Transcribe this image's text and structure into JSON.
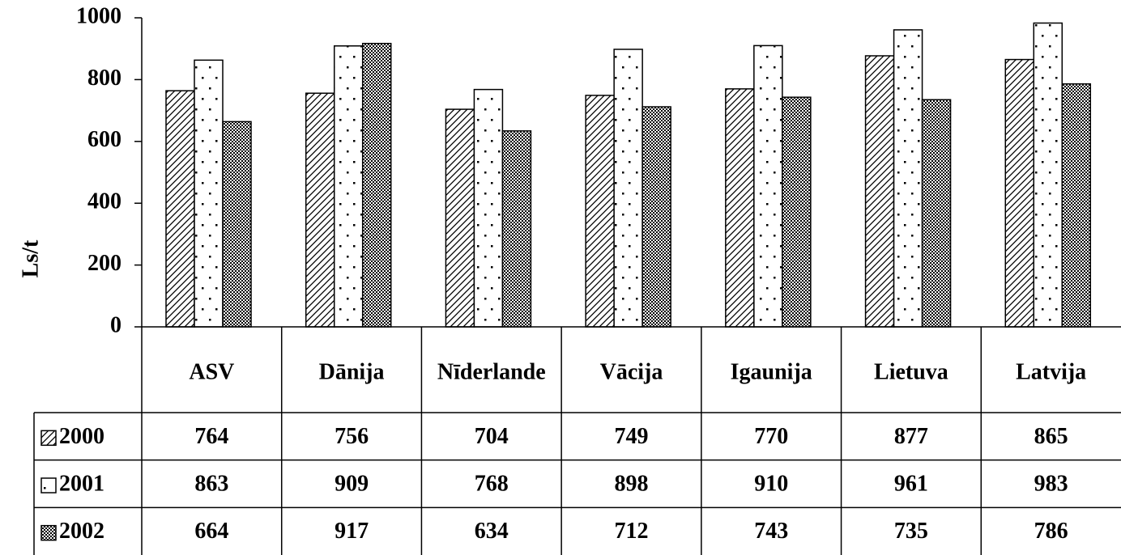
{
  "chart_data": {
    "type": "bar",
    "y_label": "Ls/t",
    "categories": [
      "ASV",
      "Dānija",
      "Nīderlande",
      "Vācija",
      "Igaunija",
      "Lietuva",
      "Latvija"
    ],
    "series": [
      {
        "name": "2000",
        "pattern": "diagonal",
        "values": [
          764,
          756,
          704,
          749,
          770,
          877,
          865
        ]
      },
      {
        "name": "2001",
        "pattern": "dots",
        "values": [
          863,
          909,
          768,
          898,
          910,
          961,
          983
        ]
      },
      {
        "name": "2002",
        "pattern": "checker",
        "values": [
          664,
          917,
          634,
          712,
          743,
          735,
          786
        ]
      }
    ],
    "ylim": [
      0,
      1000
    ],
    "yticks": [
      0,
      200,
      400,
      600,
      800,
      1000
    ],
    "data_table": true
  }
}
